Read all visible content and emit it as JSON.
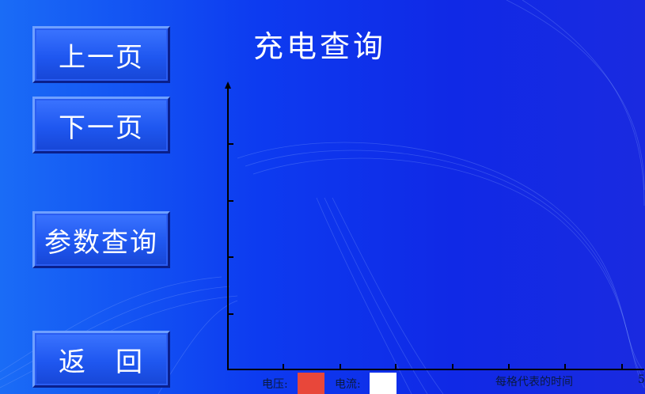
{
  "title": "充电查询",
  "buttons": {
    "prev": "上一页",
    "next": "下一页",
    "params": "参数查询",
    "back": "返　回"
  },
  "legend": {
    "voltage_label": "电压:",
    "voltage_color": "#e8473a",
    "current_label": "电流:",
    "current_color": "#ffffff",
    "time_label": "每格代表的时间",
    "partial_value": "5"
  },
  "colors": {
    "background": "#1029e6",
    "button": "#2a5df2",
    "axis": "#000000"
  }
}
